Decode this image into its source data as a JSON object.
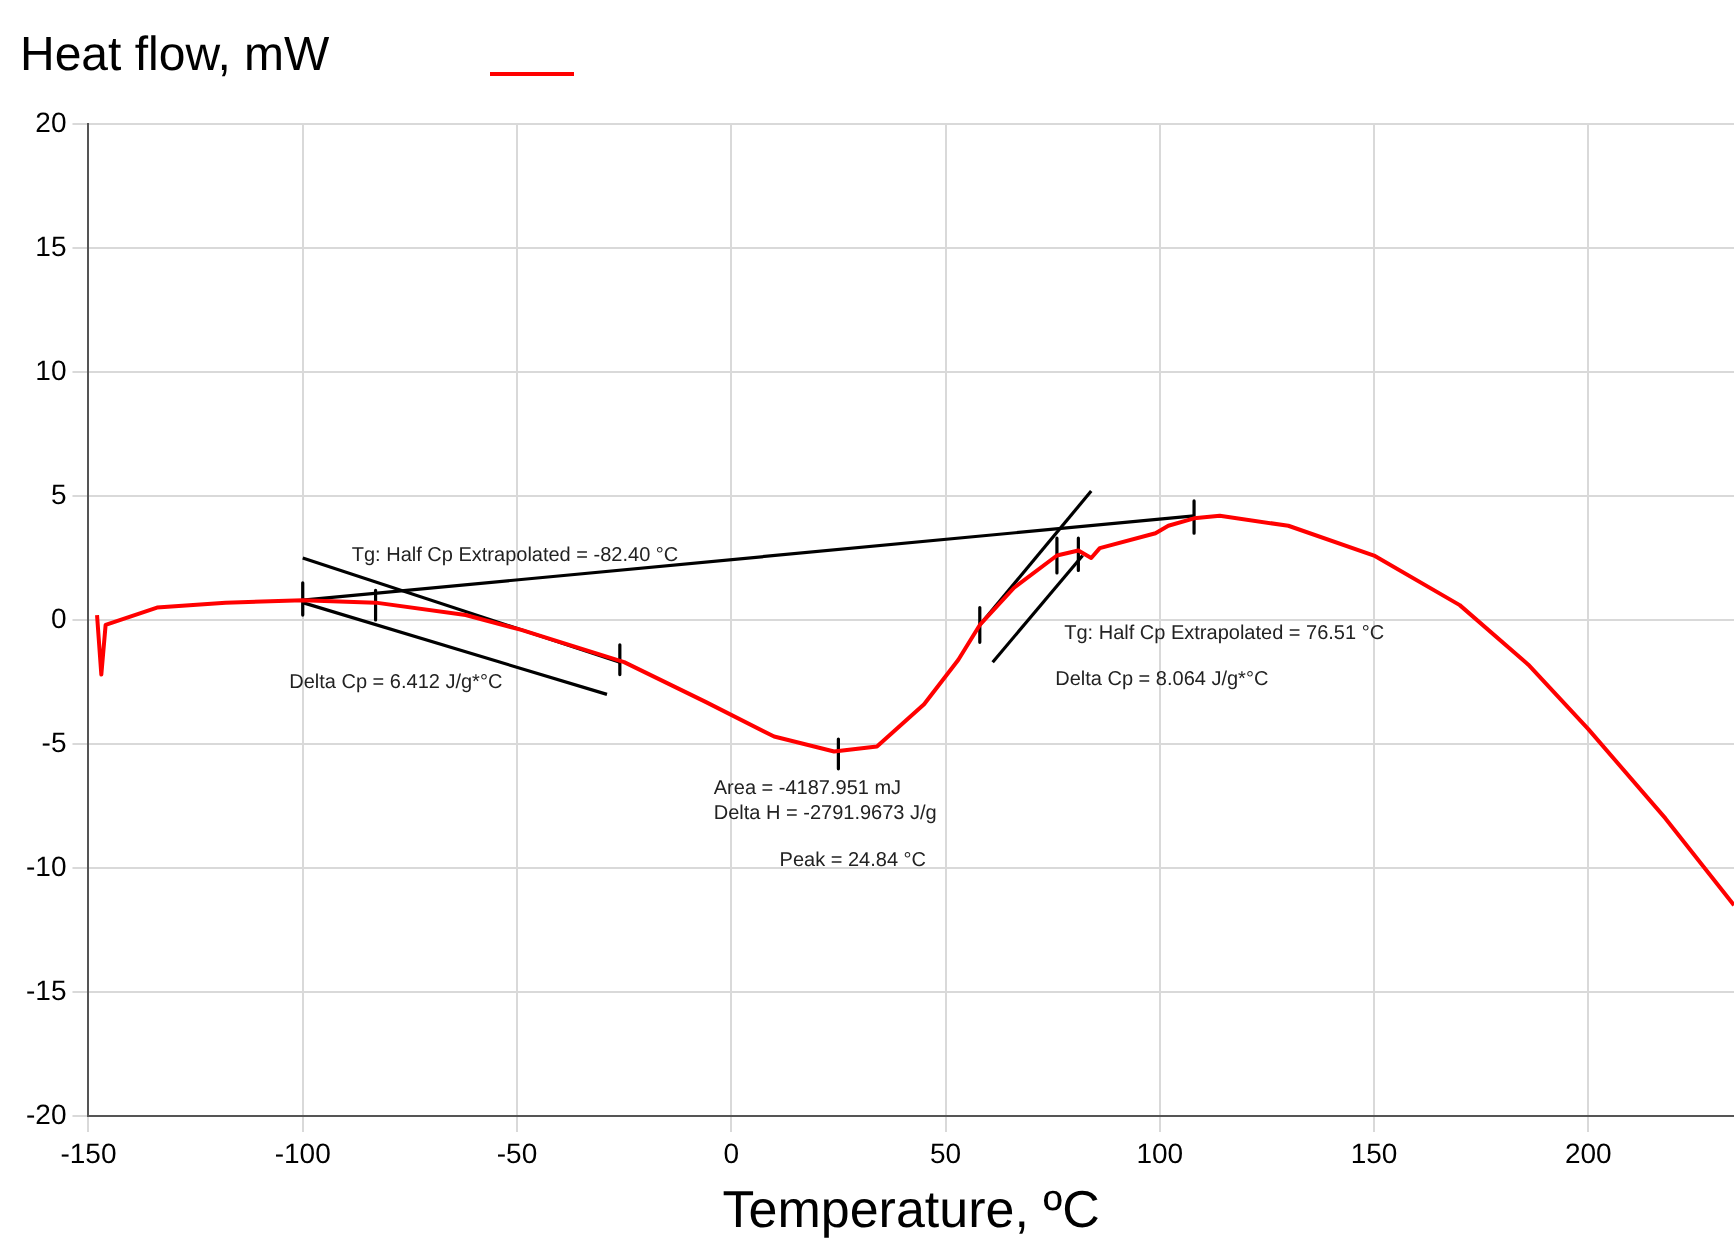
{
  "chart_data": {
    "type": "line",
    "ylabel": "Heat flow, mW",
    "xlabel": "Temperature, ºC",
    "xlim": [
      -150,
      234
    ],
    "xticks": [
      -150,
      -100,
      -50,
      0,
      50,
      100,
      150,
      200
    ],
    "ylim": [
      -20,
      20
    ],
    "yticks": [
      -20,
      -15,
      -10,
      -5,
      0,
      5,
      10,
      15,
      20
    ],
    "grid": true,
    "marker": "none",
    "line_style": "solid",
    "series": [
      {
        "color": "#ff0000",
        "x": [
          -148,
          -147,
          -146,
          -134,
          -118,
          -100,
          -83,
          -62,
          -49,
          -25,
          -6,
          10,
          24,
          34,
          45,
          53,
          58,
          66,
          76,
          81,
          84,
          86,
          99,
          102,
          108,
          114,
          130,
          150,
          170,
          186,
          200,
          218,
          234
        ],
        "values": [
          0.2,
          -2.2,
          -0.2,
          0.5,
          0.7,
          0.8,
          0.7,
          0.2,
          -0.4,
          -1.7,
          -3.3,
          -4.7,
          -5.3,
          -5.1,
          -3.4,
          -1.6,
          -0.2,
          1.3,
          2.6,
          2.8,
          2.5,
          2.9,
          3.5,
          3.8,
          4.1,
          4.2,
          3.8,
          2.6,
          0.6,
          -1.8,
          -4.4,
          -8.0,
          -11.5
        ]
      },
      {
        "color": "#000000",
        "x": [
          -100,
          108
        ],
        "values": [
          0.8,
          4.2
        ]
      },
      {
        "color": "#000000",
        "x": [
          -100,
          -26
        ],
        "values": [
          2.5,
          -1.7
        ]
      },
      {
        "color": "#000000",
        "x": [
          -100,
          -29
        ],
        "values": [
          0.7,
          -3.0
        ]
      },
      {
        "color": "#000000",
        "x": [
          58,
          84
        ],
        "values": [
          -0.2,
          5.2
        ]
      },
      {
        "color": "#000000",
        "x": [
          61,
          82
        ],
        "values": [
          -1.7,
          2.6
        ]
      },
      {
        "color": "#000000",
        "x": [
          -100,
          -100
        ],
        "values": [
          1.5,
          0.2
        ]
      },
      {
        "color": "#000000",
        "x": [
          -83,
          -83
        ],
        "values": [
          1.2,
          0.0
        ]
      },
      {
        "color": "#000000",
        "x": [
          -26,
          -26
        ],
        "values": [
          -1.0,
          -2.2
        ]
      },
      {
        "color": "#000000",
        "x": [
          25,
          25
        ],
        "values": [
          -4.8,
          -6.0
        ]
      },
      {
        "color": "#000000",
        "x": [
          58,
          58
        ],
        "values": [
          0.5,
          -0.9
        ]
      },
      {
        "color": "#000000",
        "x": [
          76,
          76
        ],
        "values": [
          3.3,
          1.9
        ]
      },
      {
        "color": "#000000",
        "x": [
          81,
          81
        ],
        "values": [
          3.3,
          2.0
        ]
      },
      {
        "color": "#000000",
        "x": [
          108,
          108
        ],
        "values": [
          4.8,
          3.5
        ]
      }
    ],
    "annotations": [
      "Tg: Half Cp Extrapolated = -82.40 °C",
      "Delta Cp = 6.412 J/g*°C",
      "Area = -4187.951 mJ",
      "Delta H = -2791.9673 J/g",
      "Peak = 24.84 °C",
      "Tg: Half Cp Extrapolated = 76.51 °C",
      "Delta Cp = 8.064 J/g*°C"
    ]
  }
}
